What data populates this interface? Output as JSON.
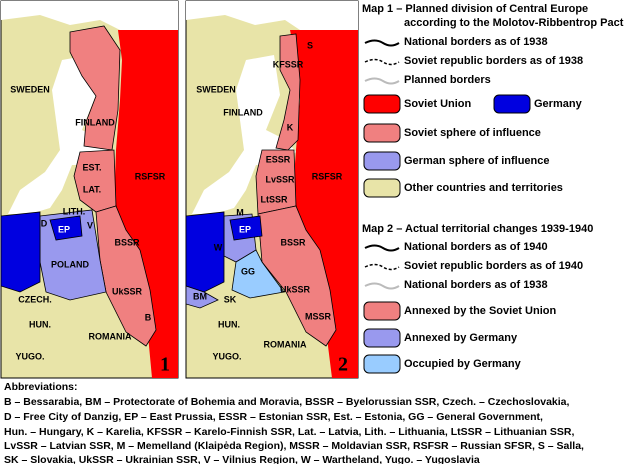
{
  "map1": {
    "number": "1",
    "labels": [
      "SWEDEN",
      "FINLAND",
      "EST.",
      "LAT.",
      "LITH.",
      "RSFSR",
      "POLAND",
      "BSSR",
      "UkSSR",
      "CZECH.",
      "HUN.",
      "ROMANIA",
      "YUGO.",
      "B",
      "D",
      "EP",
      "V"
    ]
  },
  "map2": {
    "number": "2",
    "labels": [
      "SWEDEN",
      "FINLAND",
      "KFSSR",
      "K",
      "ESSR",
      "LvSSR",
      "LtSSR",
      "M",
      "EP",
      "W",
      "GG",
      "BSSR",
      "UkSSR",
      "MSSR",
      "BM",
      "SK",
      "HUN.",
      "ROMANIA",
      "YUGO.",
      "RSFSR",
      "S"
    ]
  },
  "legend": {
    "map1": {
      "title_lines": [
        "Map 1 – Planned division of Central Europe",
        "according to the Molotov-Ribbentrop Pact"
      ],
      "items": [
        "National borders as of 1938",
        "Soviet republic borders as of 1938",
        "Planned borders",
        "Soviet Union",
        "Germany",
        "Soviet sphere of influence",
        "German sphere of influence",
        "Other countries and territories"
      ]
    },
    "map2": {
      "title": "Map 2 – Actual territorial changes 1939-1940",
      "items": [
        "National borders as of 1940",
        "Soviet republic borders as of 1940",
        "National borders as of 1938",
        "Annexed by the Soviet Union",
        "Annexed by Germany",
        "Occupied by Germany"
      ]
    }
  },
  "abbreviations": {
    "title": "Abbreviations:",
    "lines": [
      "B – Bessarabia, BM – Protectorate of Bohemia and Moravia, BSSR – Byelorussian SSR, Czech. – Czechoslovakia,",
      "D – Free City of Danzig, EP – East Prussia, ESSR – Estonian SSR, Est. – Estonia, GG – General Government,",
      "Hun. – Hungary, K – Karelia, KFSSR – Karelo-Finnish SSR, Lat. – Latvia, Lith. – Lithuania, LtSSR – Lithuanian SSR,",
      "LvSSR – Latvian SSR, M – Memelland (Klaipėda Region), MSSR – Moldavian SSR, RSFSR – Russian SFSR, S – Salla,",
      "SK – Slovakia, UkSSR – Ukrainian SSR, V – Vilnius Region, W – Wartheland, Yugo. – Yugoslavia"
    ]
  }
}
